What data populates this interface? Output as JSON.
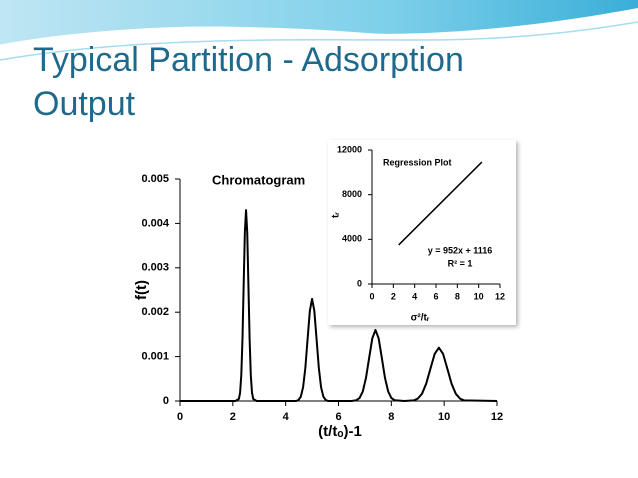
{
  "title": "Typical Partition - Adsorption Output",
  "chart_data": [
    {
      "type": "line",
      "title": "Chromatogram",
      "x_label": "(t/tₒ)-1",
      "y_label": "f(t)",
      "color": "#000000",
      "x": [
        0,
        2.1,
        2.23,
        2.275,
        2.32,
        2.365,
        2.41,
        2.455,
        2.5,
        2.545,
        2.59,
        2.635,
        2.68,
        2.725,
        2.77,
        2.9,
        4.4,
        4.49,
        4.575,
        4.66,
        4.745,
        4.83,
        4.915,
        5.0,
        5.085,
        5.17,
        5.255,
        5.34,
        5.425,
        5.51,
        5.6,
        6.5,
        6.68,
        6.8,
        6.92,
        7.04,
        7.16,
        7.28,
        7.4,
        7.52,
        7.64,
        7.76,
        7.88,
        8.0,
        8.12,
        8.5,
        8.84,
        9.0,
        9.16,
        9.32,
        9.48,
        9.64,
        9.8,
        9.96,
        10.12,
        10.28,
        10.44,
        10.6,
        10.76,
        12
      ],
      "values": [
        0,
        0,
        4.8e-05,
        0.000189,
        0.000582,
        0.001396,
        0.002608,
        0.003795,
        0.0043,
        0.003795,
        0.002608,
        0.001396,
        0.000582,
        0.000189,
        4.8e-05,
        0,
        0,
        2.6e-05,
        0.000101,
        0.000311,
        0.000747,
        0.001395,
        0.00203,
        0.0023,
        0.00203,
        0.001395,
        0.000747,
        0.000311,
        0.000101,
        2.6e-05,
        0,
        0,
        1.8e-05,
        7e-05,
        0.000216,
        0.00052,
        0.00097,
        0.001412,
        0.0016,
        0.001412,
        0.00097,
        0.00052,
        0.000216,
        7e-05,
        1.8e-05,
        0,
        1.3e-05,
        5.3e-05,
        0.000162,
        0.00039,
        0.000728,
        0.001059,
        0.0012,
        0.001059,
        0.000728,
        0.00039,
        0.000162,
        5.3e-05,
        1.3e-05,
        0
      ],
      "xlim": [
        0,
        12
      ],
      "xticks": [
        0,
        2,
        4,
        6,
        8,
        10,
        12
      ],
      "ylim": [
        0,
        0.005
      ],
      "yticks": [
        0,
        0.001,
        0.002,
        0.003,
        0.004,
        0.005
      ]
    },
    {
      "type": "line",
      "title": "Regression Plot",
      "x_label": "σ²/tᵣ",
      "y_label": "tᵣ",
      "color": "#000000",
      "x": [
        2.5,
        10.3
      ],
      "values": [
        3496,
        10922
      ],
      "xlim": [
        0,
        12
      ],
      "xticks": [
        0,
        2,
        4,
        6,
        8,
        10,
        12
      ],
      "ylim": [
        0,
        12000
      ],
      "yticks": [
        0,
        4000,
        8000,
        12000
      ],
      "annotations": [
        "y = 952x + 1116",
        "R² = 1"
      ]
    }
  ]
}
